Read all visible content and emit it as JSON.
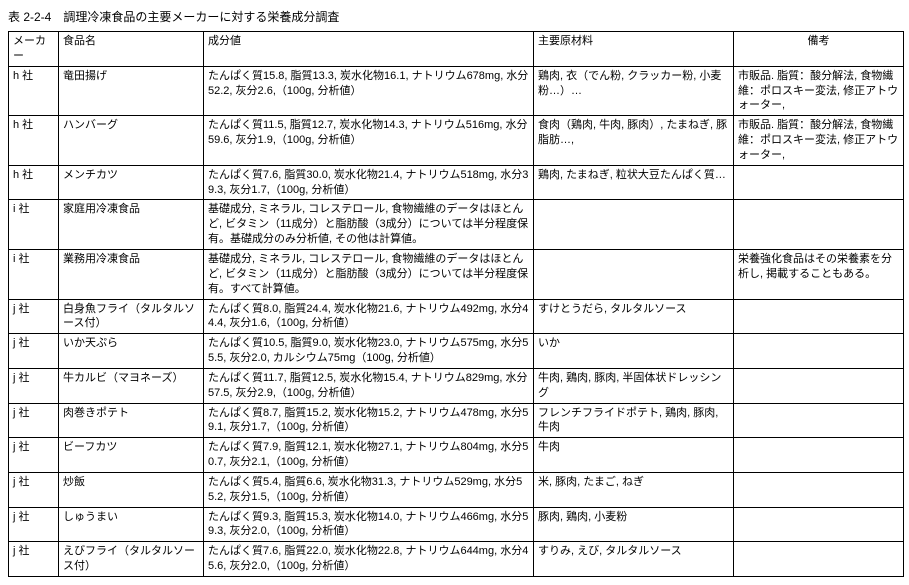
{
  "title": "表 2-2-4　調理冷凍食品の主要メーカーに対する栄養成分調査",
  "headers": {
    "maker": "メーカー",
    "food": "食品名",
    "nutrition": "成分値",
    "ingredients": "主要原材料",
    "notes": "備考"
  },
  "rows": [
    {
      "maker": "h 社",
      "food": "竜田揚げ",
      "nutrition": "たんぱく質15.8, 脂質13.3, 炭水化物16.1, ナトリウム678mg, 水分52.2, 灰分2.6,（100g, 分析値）",
      "ingredients": "鶏肉, 衣（でん粉, クラッカー粉, 小麦粉…）…",
      "notes": "市販品. 脂質：酸分解法, 食物繊維：ポロスキー変法, 修正アトウォーター,"
    },
    {
      "maker": "h 社",
      "food": "ハンバーグ",
      "nutrition": "たんぱく質11.5, 脂質12.7, 炭水化物14.3, ナトリウム516mg, 水分59.6, 灰分1.9,（100g, 分析値）",
      "ingredients": "食肉（鶏肉, 牛肉, 豚肉）, たまねぎ, 豚脂肪…,",
      "notes": "市販品. 脂質：酸分解法, 食物繊維：ポロスキー変法, 修正アトウォーター,"
    },
    {
      "maker": "h 社",
      "food": "メンチカツ",
      "nutrition": "たんぱく質7.6, 脂質30.0, 炭水化物21.4, ナトリウム518mg, 水分39.3, 灰分1.7,（100g, 分析値）",
      "ingredients": "鶏肉, たまねぎ, 粒状大豆たんぱく質…",
      "notes": ""
    },
    {
      "maker": "i 社",
      "food": "家庭用冷凍食品",
      "nutrition": "基礎成分, ミネラル, コレステロール, 食物繊維のデータはほとんど, ビタミン（11成分）と脂肪酸（3成分）については半分程度保有。基礎成分のみ分析値, その他は計算値。",
      "ingredients": "",
      "notes": ""
    },
    {
      "maker": "i 社",
      "food": "業務用冷凍食品",
      "nutrition": "基礎成分, ミネラル, コレステロール, 食物繊維のデータはほとんど, ビタミン（11成分）と脂肪酸（3成分）については半分程度保有。すべて計算値。",
      "ingredients": "",
      "notes": "栄養強化食品はその栄養素を分析し, 掲載することもある。"
    },
    {
      "maker": "j 社",
      "food": "白身魚フライ（タルタルソース付）",
      "nutrition": "たんぱく質8.0, 脂質24.4, 炭水化物21.6, ナトリウム492mg, 水分44.4, 灰分1.6,（100g, 分析値）",
      "ingredients": "すけとうだら, タルタルソース",
      "notes": ""
    },
    {
      "maker": "j 社",
      "food": "いか天ぷら",
      "nutrition": "たんぱく質10.5, 脂質9.0, 炭水化物23.0, ナトリウム575mg, 水分55.5, 灰分2.0, カルシウム75mg（100g, 分析値）",
      "ingredients": "いか",
      "notes": ""
    },
    {
      "maker": "j 社",
      "food": "牛カルビ（マヨネーズ）",
      "nutrition": "たんぱく質11.7, 脂質12.5, 炭水化物15.4, ナトリウム829mg, 水分57.5, 灰分2.9,（100g, 分析値）",
      "ingredients": "牛肉, 鶏肉, 豚肉, 半固体状ドレッシング",
      "notes": ""
    },
    {
      "maker": "j 社",
      "food": "肉巻きポテト",
      "nutrition": "たんぱく質8.7, 脂質15.2, 炭水化物15.2, ナトリウム478mg, 水分59.1, 灰分1.7,（100g, 分析値）",
      "ingredients": "フレンチフライドポテト, 鶏肉, 豚肉, 牛肉",
      "notes": ""
    },
    {
      "maker": "j 社",
      "food": "ビーフカツ",
      "nutrition": "たんぱく質7.9, 脂質12.1, 炭水化物27.1, ナトリウム804mg, 水分50.7, 灰分2.1,（100g, 分析値）",
      "ingredients": "牛肉",
      "notes": ""
    },
    {
      "maker": "j 社",
      "food": "炒飯",
      "nutrition": "たんぱく質5.4, 脂質6.6, 炭水化物31.3, ナトリウム529mg, 水分55.2, 灰分1.5,（100g, 分析値）",
      "ingredients": "米, 豚肉, たまご, ねぎ",
      "notes": ""
    },
    {
      "maker": "j 社",
      "food": "しゅうまい",
      "nutrition": "たんぱく質9.3, 脂質15.3, 炭水化物14.0, ナトリウム466mg, 水分59.3, 灰分2.0,（100g, 分析値）",
      "ingredients": "豚肉, 鶏肉, 小麦粉",
      "notes": ""
    },
    {
      "maker": "j 社",
      "food": "えびフライ（タルタルソース付）",
      "nutrition": "たんぱく質7.6, 脂質22.0, 炭水化物22.8, ナトリウム644mg, 水分45.6, 灰分2.0,（100g, 分析値）",
      "ingredients": "すりみ, えび, タルタルソース",
      "notes": ""
    }
  ]
}
